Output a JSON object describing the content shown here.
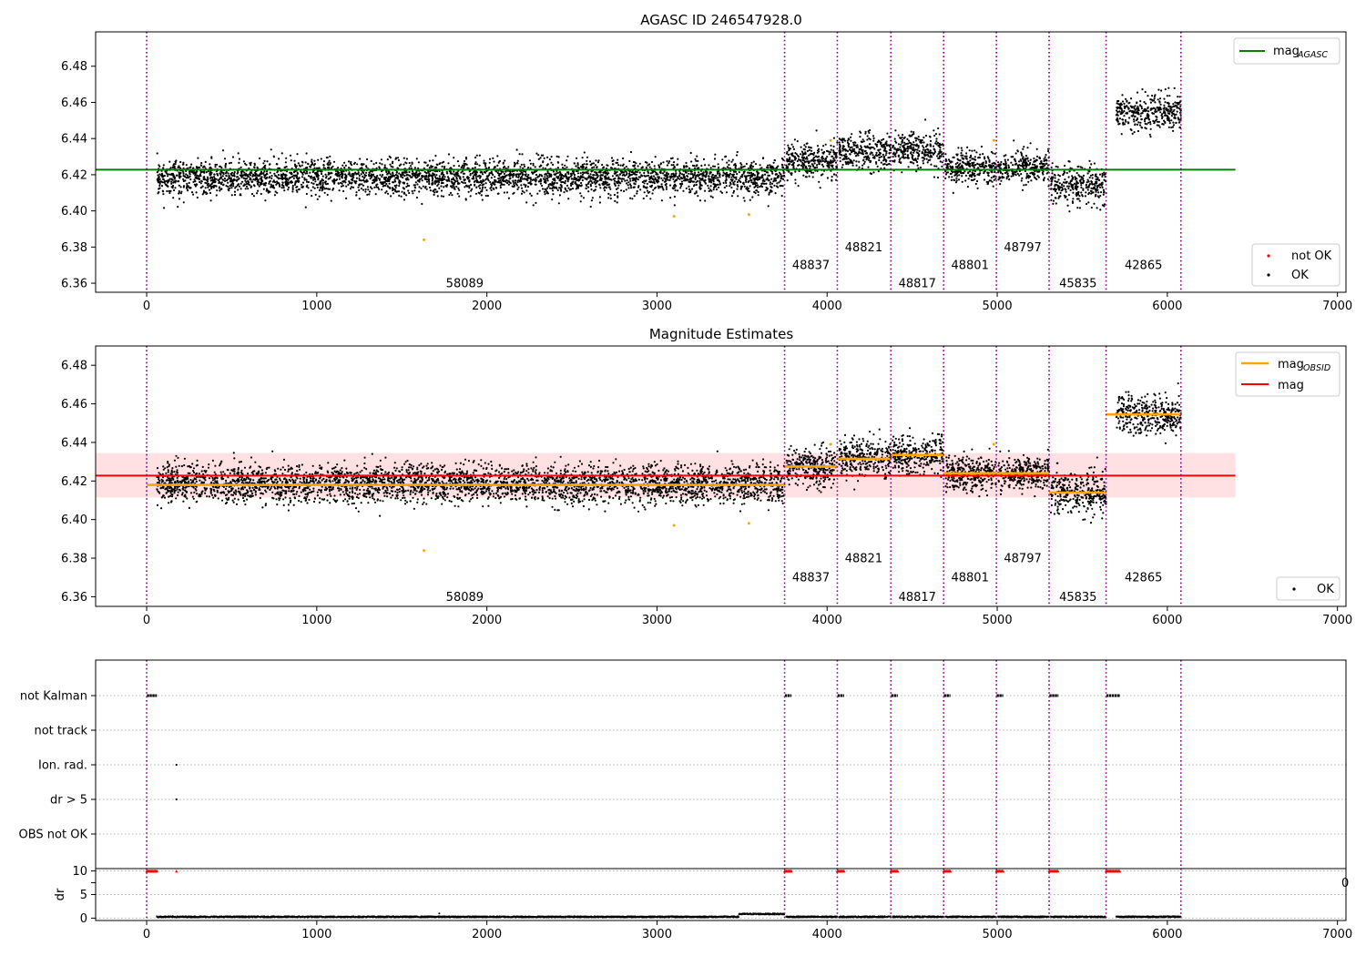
{
  "chart_data": [
    {
      "type": "scatter",
      "title": "AGASC ID 246547928.0",
      "xlim": [
        -300,
        7050
      ],
      "ylim": [
        6.355,
        6.499
      ],
      "x_ticks": [
        0,
        1000,
        2000,
        3000,
        4000,
        5000,
        6000,
        7000
      ],
      "y_ticks": [
        6.36,
        6.38,
        6.4,
        6.42,
        6.44,
        6.46,
        6.48
      ],
      "y_tick_labels": [
        "6.36",
        "6.38",
        "6.40",
        "6.42",
        "6.44",
        "6.46",
        "6.48"
      ],
      "obs_boundaries": [
        0,
        3750,
        4060,
        4375,
        4685,
        4995,
        5305,
        5640,
        6080
      ],
      "obsids": [
        {
          "label": "58089",
          "x": 1870,
          "y": 6.36
        },
        {
          "label": "48837",
          "x": 3905,
          "y": 6.37
        },
        {
          "label": "48821",
          "x": 4215,
          "y": 6.38
        },
        {
          "label": "48817",
          "x": 4530,
          "y": 6.36
        },
        {
          "label": "48801",
          "x": 4840,
          "y": 6.37
        },
        {
          "label": "48797",
          "x": 5150,
          "y": 6.38
        },
        {
          "label": "45835",
          "x": 5475,
          "y": 6.36
        },
        {
          "label": "42865",
          "x": 5860,
          "y": 6.37
        }
      ],
      "series": [
        {
          "name": "mag_AGASC",
          "kind": "hline",
          "y": 6.4228,
          "x_range": [
            -300,
            6400
          ],
          "color": "#008000"
        }
      ],
      "point_groups": [
        {
          "x_range": [
            60,
            3750
          ],
          "center": 6.4185,
          "spread": 0.0065
        },
        {
          "x_range": [
            3760,
            4060
          ],
          "center": 6.4275,
          "spread": 0.0065
        },
        {
          "x_range": [
            4070,
            4375
          ],
          "center": 6.4325,
          "spread": 0.0065
        },
        {
          "x_range": [
            4385,
            4685
          ],
          "center": 6.4335,
          "spread": 0.0065
        },
        {
          "x_range": [
            4695,
            4995
          ],
          "center": 6.424,
          "spread": 0.006
        },
        {
          "x_range": [
            5005,
            5305
          ],
          "center": 6.424,
          "spread": 0.006
        },
        {
          "x_range": [
            5315,
            5640
          ],
          "center": 6.414,
          "spread": 0.007
        },
        {
          "x_range": [
            5700,
            6080
          ],
          "center": 6.4545,
          "spread": 0.0065
        }
      ],
      "outliers": [
        [
          1630,
          6.384
        ],
        [
          3100,
          6.397
        ],
        [
          3540,
          6.398
        ],
        [
          4020,
          6.439
        ],
        [
          4980,
          6.439
        ]
      ],
      "legend": [
        {
          "label": "mag",
          "sub": "AGASC",
          "kind": "line",
          "color": "#008000",
          "position": "top-right"
        },
        {
          "label": "not OK",
          "kind": "marker",
          "color": "#ff0000",
          "position": "bottom-right"
        },
        {
          "label": "OK",
          "kind": "marker",
          "color": "#000000",
          "position": "bottom-right"
        }
      ]
    },
    {
      "type": "scatter",
      "title": "Magnitude Estimates",
      "xlim": [
        -300,
        7050
      ],
      "ylim": [
        6.355,
        6.49
      ],
      "x_ticks": [
        0,
        1000,
        2000,
        3000,
        4000,
        5000,
        6000,
        7000
      ],
      "y_ticks": [
        6.36,
        6.38,
        6.4,
        6.42,
        6.44,
        6.46,
        6.48
      ],
      "y_tick_labels": [
        "6.36",
        "6.38",
        "6.40",
        "6.42",
        "6.44",
        "6.46",
        "6.48"
      ],
      "mag": 6.4228,
      "mag_band": [
        6.4115,
        6.4345
      ],
      "mag_obsid": [
        {
          "x_range": [
            0,
            3750
          ],
          "y": 6.418
        },
        {
          "x_range": [
            3750,
            4060
          ],
          "y": 6.4275
        },
        {
          "x_range": [
            4060,
            4375
          ],
          "y": 6.4315
        },
        {
          "x_range": [
            4375,
            4685
          ],
          "y": 6.4335
        },
        {
          "x_range": [
            4685,
            4995
          ],
          "y": 6.424
        },
        {
          "x_range": [
            4995,
            5305
          ],
          "y": 6.424
        },
        {
          "x_range": [
            5305,
            5640
          ],
          "y": 6.414
        },
        {
          "x_range": [
            5640,
            6080
          ],
          "y": 6.4545
        }
      ],
      "legend": [
        {
          "label": "mag",
          "sub": "OBSID",
          "kind": "line",
          "color": "#ffa500",
          "position": "top-right"
        },
        {
          "label": "mag",
          "kind": "line",
          "color": "#ff0000",
          "position": "top-right"
        },
        {
          "label": "OK",
          "kind": "marker",
          "color": "#000000",
          "position": "bottom-right"
        }
      ]
    },
    {
      "type": "scatter",
      "title": "",
      "xlim": [
        -300,
        7050
      ],
      "x_ticks": [
        0,
        1000,
        2000,
        3000,
        4000,
        5000,
        6000,
        7000
      ],
      "flags": [
        "not Kalman",
        "not track",
        "Ion. rad.",
        "dr > 5",
        "OBS not OK"
      ],
      "flag_events": {
        "not Kalman": [
          [
            0,
            60
          ],
          [
            3750,
            3790
          ],
          [
            4060,
            4100
          ],
          [
            4375,
            4415
          ],
          [
            4685,
            4725
          ],
          [
            4995,
            5035
          ],
          [
            5305,
            5360
          ],
          [
            5640,
            5720
          ]
        ],
        "Ion. rad.": [
          [
            175,
            175
          ]
        ],
        "dr > 5": [
          [
            175,
            175
          ]
        ]
      },
      "dr_ylabel": "dr",
      "dr_ylim": [
        -0.5,
        10.5
      ],
      "dr_ticks": [
        0,
        5,
        10
      ],
      "dr_tick_labels": [
        "0",
        "5",
        "10"
      ],
      "dr_high": [
        [
          0,
          60
        ],
        [
          175,
          175
        ],
        [
          3750,
          3790
        ],
        [
          4060,
          4100
        ],
        [
          4375,
          4415
        ],
        [
          4685,
          4725
        ],
        [
          4995,
          5035
        ],
        [
          5305,
          5360
        ],
        [
          5640,
          5720
        ]
      ],
      "dr_low": [
        [
          60,
          3750
        ],
        [
          3760,
          4060
        ],
        [
          4070,
          4375
        ],
        [
          4385,
          4685
        ],
        [
          4695,
          4995
        ],
        [
          5005,
          5305
        ],
        [
          5315,
          5640
        ],
        [
          5700,
          6080
        ]
      ],
      "edge_text": "0"
    }
  ]
}
